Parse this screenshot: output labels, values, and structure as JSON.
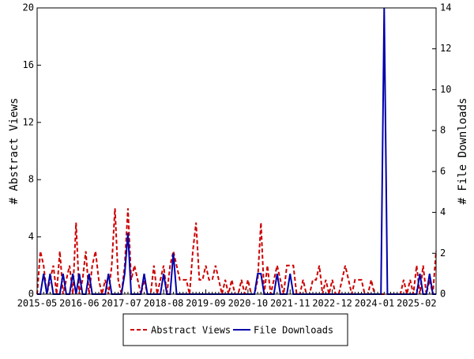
{
  "chart_data": {
    "type": "line",
    "y_label": "# Abstract Views",
    "y2_label": "# File Downloads",
    "categories": [
      "2015-05",
      null,
      null,
      null,
      null,
      null,
      null,
      null,
      null,
      null,
      null,
      null,
      null,
      "2016-06",
      null,
      null,
      null,
      null,
      null,
      null,
      null,
      null,
      null,
      null,
      null,
      null,
      "2017-07",
      null,
      null,
      null,
      null,
      null,
      null,
      null,
      null,
      null,
      null,
      null,
      null,
      "2018-08",
      null,
      null,
      null,
      null,
      null,
      null,
      null,
      null,
      null,
      null,
      null,
      null,
      "2019-09",
      null,
      null,
      null,
      null,
      null,
      null,
      null,
      null,
      null,
      null,
      null,
      null,
      "2020-10",
      null,
      null,
      null,
      null,
      null,
      null,
      null,
      null,
      null,
      null,
      null,
      null,
      "2021-11",
      null,
      null,
      null,
      null,
      null,
      null,
      null,
      null,
      null,
      null,
      null,
      null,
      "2022-12",
      null,
      null,
      null,
      null,
      null,
      null,
      null,
      null,
      null,
      null,
      null,
      null,
      "2024-01",
      null,
      null,
      null,
      null,
      null,
      null,
      null,
      null,
      null,
      null,
      null,
      null,
      "2025-02",
      null,
      null,
      null,
      null,
      null,
      null
    ],
    "series": [
      {
        "name": "Abstract Views",
        "color": "#cc0000",
        "dash": true,
        "values": [
          0,
          3,
          2,
          0,
          1,
          2,
          0,
          3,
          0,
          1,
          2,
          0,
          5,
          0,
          1,
          3,
          0,
          2,
          3,
          1,
          0,
          1,
          0,
          2,
          6,
          1,
          0,
          2,
          6,
          1,
          2,
          1,
          0,
          1,
          0,
          0,
          2,
          0,
          1,
          2,
          0,
          2,
          3,
          2,
          1,
          1,
          1,
          0,
          3,
          5,
          1,
          1,
          2,
          1,
          1,
          2,
          1,
          0,
          1,
          0,
          1,
          0,
          0,
          1,
          0,
          1,
          0,
          0,
          1,
          5,
          0,
          2,
          0,
          1,
          2,
          1,
          0,
          2,
          2,
          2,
          0,
          0,
          1,
          0,
          0,
          1,
          1,
          2,
          0,
          1,
          0,
          1,
          0,
          0,
          1,
          2,
          1,
          0,
          1,
          1,
          1,
          0,
          0,
          1,
          0,
          0,
          0,
          0,
          0,
          0,
          0,
          0,
          0,
          1,
          0,
          1,
          0,
          2,
          0,
          2,
          0,
          1,
          0,
          3
        ]
      },
      {
        "name": "File Downloads",
        "color": "#0000aa",
        "dash": false,
        "axis": "y2",
        "values": [
          0,
          0,
          1,
          0,
          1,
          0,
          0,
          0,
          1,
          0,
          0,
          1,
          0,
          1,
          0,
          0,
          1,
          0,
          0,
          0,
          0,
          0,
          1,
          0,
          0,
          0,
          0,
          1,
          3,
          0,
          0,
          0,
          0,
          1,
          0,
          0,
          0,
          0,
          0,
          1,
          0,
          0,
          2,
          0,
          0,
          0,
          0,
          0,
          0,
          0,
          0,
          0,
          0,
          0,
          0,
          0,
          0,
          0,
          0,
          0,
          0,
          0,
          0,
          0,
          0,
          0,
          0,
          0,
          1,
          1,
          0,
          0,
          0,
          0,
          1,
          0,
          0,
          0,
          1,
          0,
          0,
          0,
          0,
          0,
          0,
          0,
          0,
          0,
          0,
          0,
          0,
          0,
          0,
          0,
          0,
          0,
          0,
          0,
          0,
          0,
          0,
          0,
          0,
          0,
          0,
          0,
          0,
          14,
          0,
          0,
          0,
          0,
          0,
          0,
          0,
          0,
          0,
          0,
          1,
          0,
          0,
          1,
          0,
          0
        ]
      }
    ],
    "ylim": [
      0,
      20
    ],
    "yticks": [
      0,
      4,
      8,
      12,
      16,
      20
    ],
    "y2lim": [
      0,
      14
    ],
    "y2ticks": [
      0,
      2,
      4,
      6,
      8,
      10,
      12,
      14
    ]
  }
}
